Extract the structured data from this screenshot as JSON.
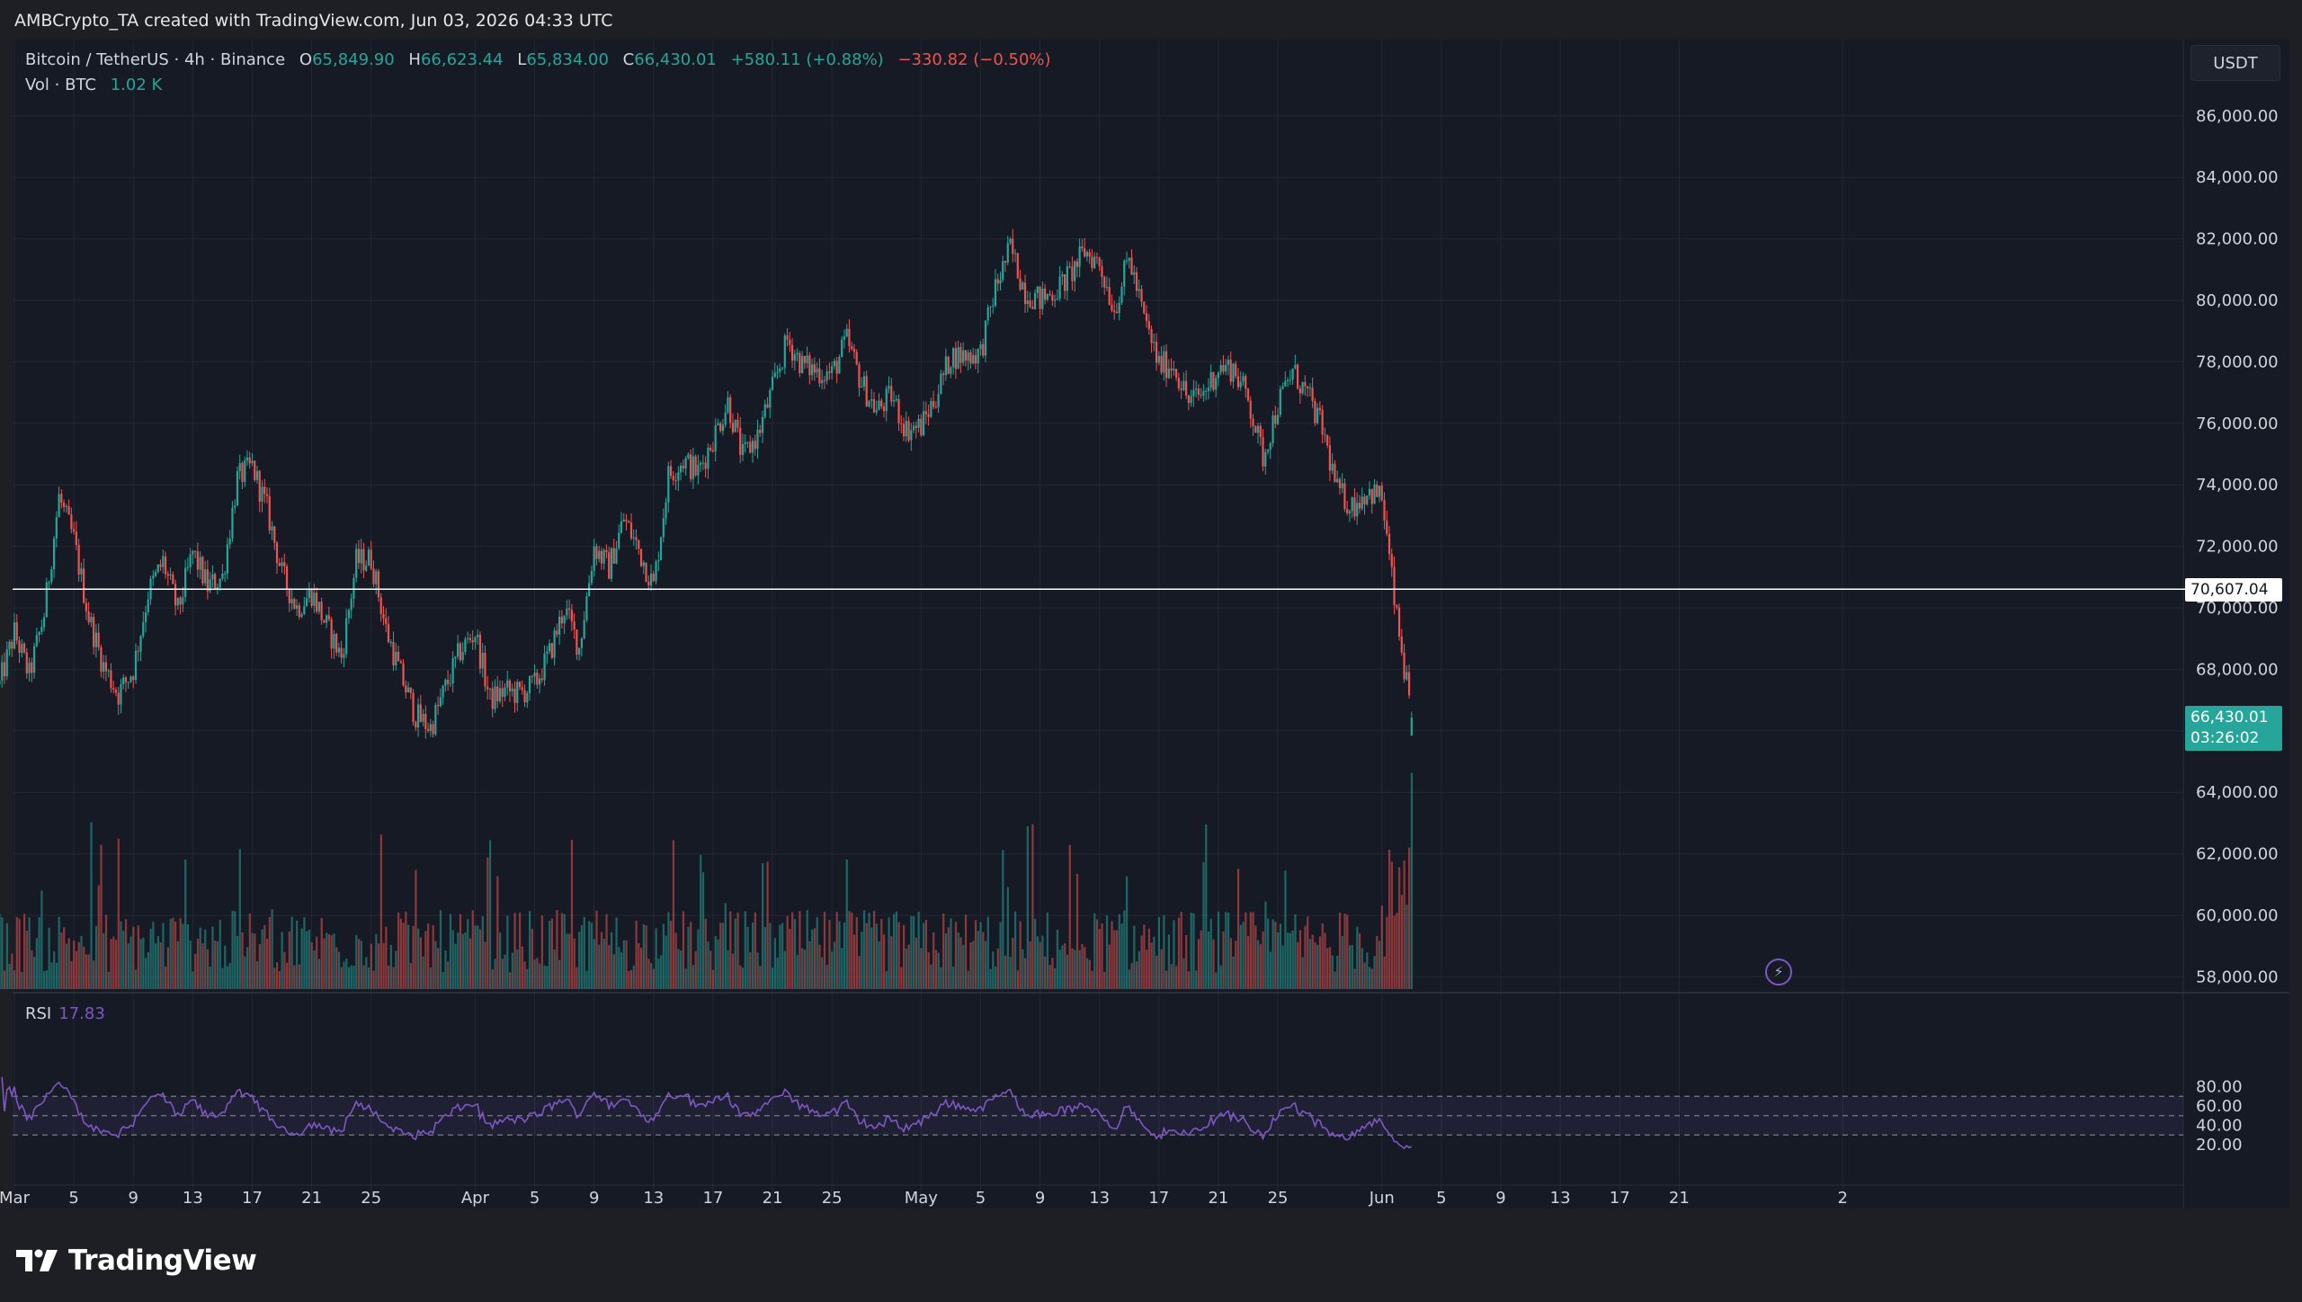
{
  "header": {
    "creator": "AMBCrypto_TA created with TradingView.com, Jun 03, 2026 04:33 UTC"
  },
  "legend": {
    "symbol": "Bitcoin / TetherUS · 4h · Binance",
    "open_label": "O",
    "open": "65,849.90",
    "high_label": "H",
    "high": "66,623.44",
    "low_label": "L",
    "low": "65,834.00",
    "close_label": "C",
    "close": "66,430.01",
    "change_up": "+580.11 (+0.88%)",
    "change_down": "−330.82 (−0.50%)",
    "volume_label": "Vol · BTC",
    "volume": "1.02 K"
  },
  "currency_button": "USDT",
  "horizontal_line": {
    "label": "70,607.04"
  },
  "last_price": {
    "price": "66,430.01",
    "countdown": "03:26:02"
  },
  "rsi": {
    "label": "RSI",
    "value": "17.83"
  },
  "brand": {
    "name": "TradingView"
  },
  "colors": {
    "up": "#26a69a",
    "down": "#ef5350",
    "rsi": "#7e57c2",
    "background": "#161a25"
  },
  "chart_data": {
    "type": "candlestick",
    "ylim": [
      57000,
      87000
    ],
    "y_ticks": [
      "58,000.00",
      "60,000.00",
      "62,000.00",
      "64,000.00",
      "66,000.00",
      "68,000.00",
      "70,000.00",
      "72,000.00",
      "74,000.00",
      "76,000.00",
      "78,000.00",
      "80,000.00",
      "82,000.00",
      "84,000.00",
      "86,000.00"
    ],
    "x_ticks": [
      "Mar",
      "5",
      "9",
      "13",
      "17",
      "21",
      "25",
      "Apr",
      "5",
      "9",
      "13",
      "17",
      "21",
      "25",
      "May",
      "5",
      "9",
      "13",
      "17",
      "21",
      "25",
      "Jun",
      "5",
      "9",
      "13",
      "17",
      "21",
      "2"
    ],
    "horizontal_line_value": 70607.04,
    "close_path": [
      [
        "Feb 28",
        67500
      ],
      [
        "Mar 1",
        69200
      ],
      [
        "Mar 2",
        67800
      ],
      [
        "Mar 3",
        69800
      ],
      [
        "Mar 4",
        73600
      ],
      [
        "Mar 5",
        72200
      ],
      [
        "Mar 6",
        69700
      ],
      [
        "Mar 7",
        68100
      ],
      [
        "Mar 8",
        67200
      ],
      [
        "Mar 9",
        68000
      ],
      [
        "Mar 10",
        70500
      ],
      [
        "Mar 11",
        71500
      ],
      [
        "Mar 12",
        69900
      ],
      [
        "Mar 13",
        71800
      ],
      [
        "Mar 14",
        70700
      ],
      [
        "Mar 15",
        71000
      ],
      [
        "Mar 16",
        74200
      ],
      [
        "Mar 17",
        74600
      ],
      [
        "Mar 18",
        73200
      ],
      [
        "Mar 19",
        71100
      ],
      [
        "Mar 20",
        70000
      ],
      [
        "Mar 21",
        70500
      ],
      [
        "Mar 22",
        69400
      ],
      [
        "Mar 23",
        68400
      ],
      [
        "Mar 24",
        71500
      ],
      [
        "Mar 25",
        71600
      ],
      [
        "Mar 26",
        69300
      ],
      [
        "Mar 27",
        67800
      ],
      [
        "Mar 28",
        66500
      ],
      [
        "Mar 29",
        66100
      ],
      [
        "Mar 30",
        67400
      ],
      [
        "Mar 31",
        68600
      ],
      [
        "Apr 1",
        69200
      ],
      [
        "Apr 2",
        67000
      ],
      [
        "Apr 3",
        67300
      ],
      [
        "Apr 4",
        67200
      ],
      [
        "Apr 5",
        67500
      ],
      [
        "Apr 6",
        68500
      ],
      [
        "Apr 7",
        70000
      ],
      [
        "Apr 8",
        68700
      ],
      [
        "Apr 9",
        72000
      ],
      [
        "Apr 10",
        71300
      ],
      [
        "Apr 11",
        72900
      ],
      [
        "Apr 12",
        71900
      ],
      [
        "Apr 13",
        70700
      ],
      [
        "Apr 14",
        74300
      ],
      [
        "Apr 15",
        74800
      ],
      [
        "Apr 16",
        74400
      ],
      [
        "Apr 17",
        75500
      ],
      [
        "Apr 18",
        76700
      ],
      [
        "Apr 19",
        74900
      ],
      [
        "Apr 20",
        75600
      ],
      [
        "Apr 21",
        77100
      ],
      [
        "Apr 22",
        78700
      ],
      [
        "Apr 23",
        77900
      ],
      [
        "Apr 24",
        77700
      ],
      [
        "Apr 25",
        77600
      ],
      [
        "Apr 26",
        78700
      ],
      [
        "Apr 27",
        77300
      ],
      [
        "Apr 28",
        76400
      ],
      [
        "Apr 29",
        76900
      ],
      [
        "Apr 30",
        75800
      ],
      [
        "May 1",
        75900
      ],
      [
        "May 2",
        76900
      ],
      [
        "May 3",
        78200
      ],
      [
        "May 4",
        78200
      ],
      [
        "May 5",
        78300
      ],
      [
        "May 6",
        80400
      ],
      [
        "May 7",
        81700
      ],
      [
        "May 8",
        80300
      ],
      [
        "May 9",
        80000
      ],
      [
        "May 10",
        80300
      ],
      [
        "May 11",
        80800
      ],
      [
        "May 12",
        81600
      ],
      [
        "May 13",
        81200
      ],
      [
        "May 14",
        79700
      ],
      [
        "May 15",
        81400
      ],
      [
        "May 16",
        79400
      ],
      [
        "May 17",
        77900
      ],
      [
        "May 18",
        77900
      ],
      [
        "May 19",
        76700
      ],
      [
        "May 20",
        77000
      ],
      [
        "May 21",
        77800
      ],
      [
        "May 22",
        77800
      ],
      [
        "May 23",
        76800
      ],
      [
        "May 24",
        74900
      ],
      [
        "May 25",
        76600
      ],
      [
        "May 26",
        77700
      ],
      [
        "May 27",
        76900
      ],
      [
        "May 28",
        75800
      ],
      [
        "May 29",
        73800
      ],
      [
        "May 30",
        73300
      ],
      [
        "May 31",
        73800
      ],
      [
        "Jun 1",
        73600
      ],
      [
        "Jun 2",
        69600
      ],
      [
        "Jun 3",
        66430
      ]
    ],
    "volume_scale_btc": [
      0,
      8
    ]
  }
}
